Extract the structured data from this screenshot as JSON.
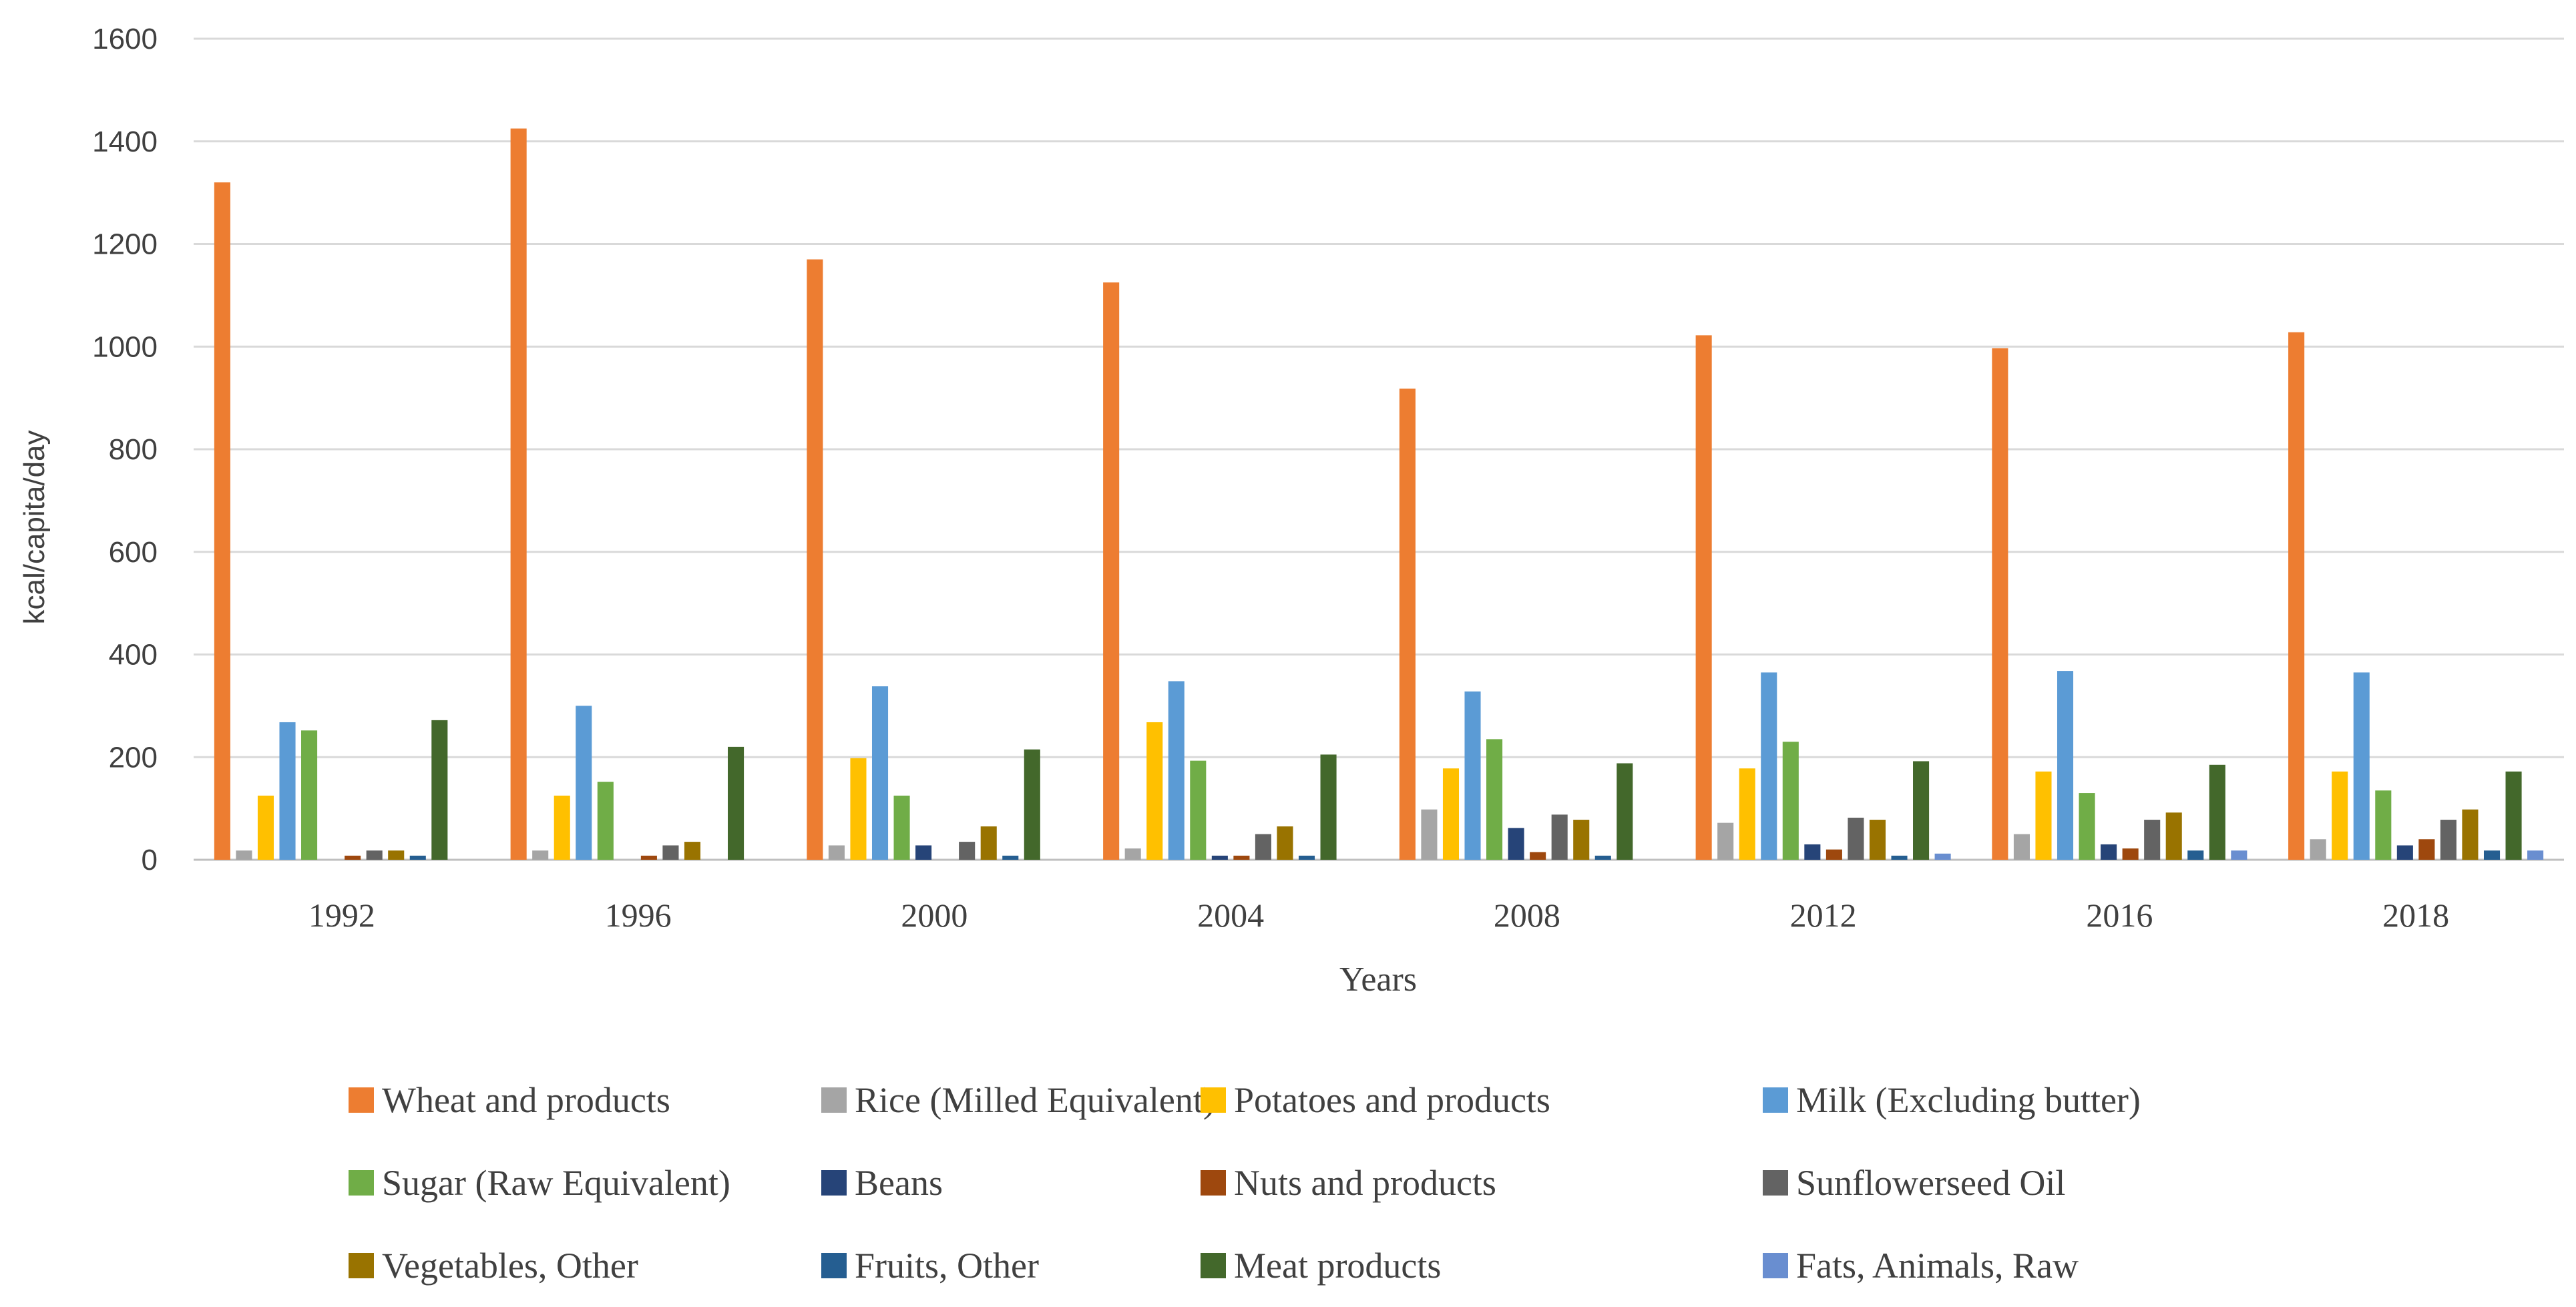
{
  "chart_data": {
    "type": "bar",
    "title": "",
    "xlabel": "Years",
    "ylabel": "kcal/capita/day",
    "ylim": [
      0,
      1600
    ],
    "yticks": [
      0,
      200,
      400,
      600,
      800,
      1000,
      1200,
      1400,
      1600
    ],
    "grid": true,
    "legend_position": "bottom",
    "categories": [
      "1992",
      "1996",
      "2000",
      "2004",
      "2008",
      "2012",
      "2016",
      "2018"
    ],
    "series": [
      {
        "name": "Wheat and products",
        "color": "#ED7D31",
        "values": [
          1320,
          1425,
          1170,
          1125,
          918,
          1022,
          997,
          1028
        ]
      },
      {
        "name": "Rice (Milled Equivalent)",
        "color": "#A5A5A5",
        "values": [
          18,
          18,
          28,
          22,
          98,
          72,
          50,
          40
        ]
      },
      {
        "name": "Potatoes and products",
        "color": "#FFC000",
        "values": [
          125,
          125,
          198,
          268,
          178,
          178,
          172,
          172
        ]
      },
      {
        "name": "Milk (Excluding butter)",
        "color": "#5B9BD5",
        "values": [
          268,
          300,
          338,
          348,
          328,
          365,
          368,
          365
        ]
      },
      {
        "name": "Sugar (Raw Equivalent)",
        "color": "#70AD47",
        "values": [
          252,
          152,
          125,
          193,
          235,
          230,
          130,
          135
        ]
      },
      {
        "name": "Beans",
        "color": "#264478",
        "values": [
          0,
          0,
          28,
          8,
          62,
          30,
          30,
          28
        ]
      },
      {
        "name": "Nuts and products",
        "color": "#9E480E",
        "values": [
          8,
          8,
          0,
          8,
          15,
          20,
          22,
          40
        ]
      },
      {
        "name": "Sunflowerseed Oil",
        "color": "#636363",
        "values": [
          18,
          28,
          35,
          50,
          88,
          82,
          78,
          78
        ]
      },
      {
        "name": "Vegetables, Other",
        "color": "#997300",
        "values": [
          18,
          35,
          65,
          65,
          78,
          78,
          92,
          98
        ]
      },
      {
        "name": "Fruits, Other",
        "color": "#255E91",
        "values": [
          8,
          0,
          8,
          8,
          8,
          8,
          18,
          18
        ]
      },
      {
        "name": "Meat products",
        "color": "#43682B",
        "values": [
          272,
          220,
          215,
          205,
          188,
          192,
          185,
          172
        ]
      },
      {
        "name": "Fats, Animals, Raw",
        "color": "#698ED0",
        "values": [
          0,
          0,
          0,
          0,
          0,
          12,
          18,
          18
        ]
      }
    ]
  }
}
